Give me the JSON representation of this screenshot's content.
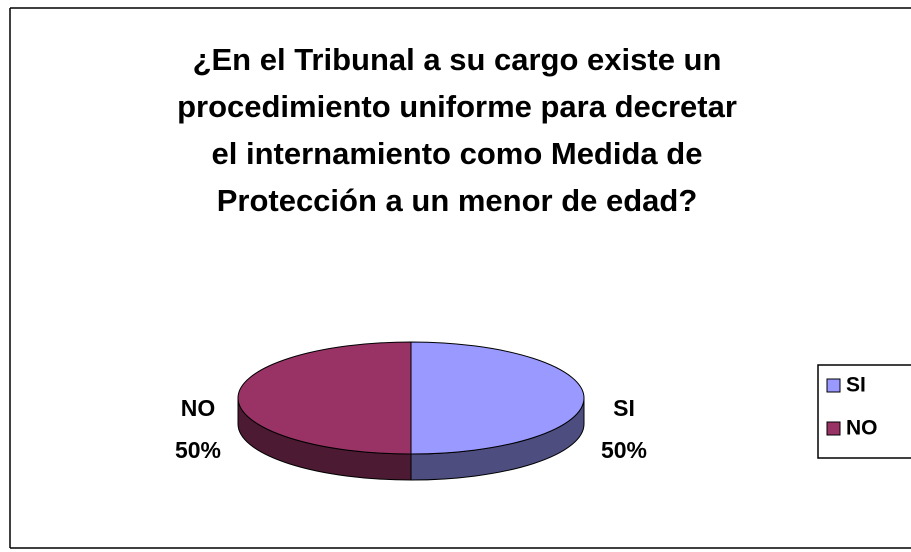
{
  "chart_data": {
    "type": "pie3d",
    "title": [
      "¿En el Tribunal a su cargo existe un",
      "procedimiento uniforme para decretar",
      "el internamiento como  Medida de",
      "Protección  a un menor de edad?"
    ],
    "categories": [
      "SI",
      "NO"
    ],
    "values": [
      50,
      50
    ],
    "value_labels": [
      "50%",
      "50%"
    ],
    "colors": [
      "#9999ff",
      "#993366"
    ],
    "side_colors": [
      "#4d4d80",
      "#4d1a33"
    ],
    "legend": "right"
  }
}
